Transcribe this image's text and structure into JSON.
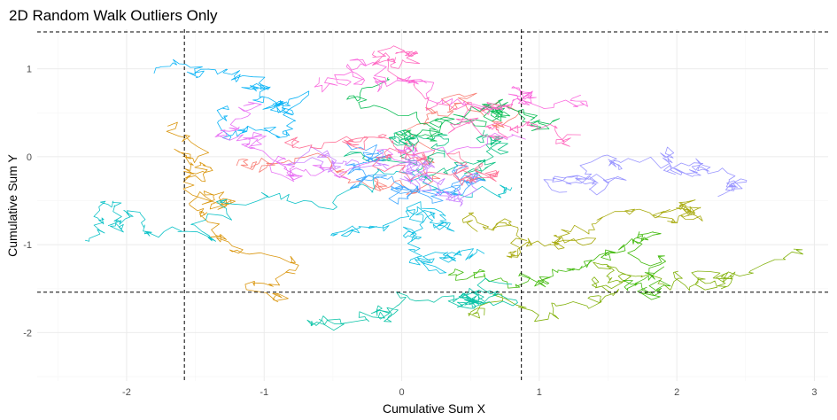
{
  "chart_data": {
    "type": "line",
    "title": "2D Random Walk Outliers Only",
    "xlabel": "Cumulative Sum X",
    "ylabel": "Cumulative Sum Y",
    "xlim": [
      -2.65,
      3.1
    ],
    "ylim": [
      -2.55,
      1.45
    ],
    "x_ticks": [
      -2,
      -1,
      0,
      1,
      2,
      3
    ],
    "y_ticks": [
      -2,
      -1,
      0,
      1
    ],
    "x_tick_labels": [
      "-2",
      "-1",
      "0",
      "1",
      "2",
      "3"
    ],
    "y_tick_labels": [
      "-2",
      "-1",
      "0",
      "1"
    ],
    "grid": true,
    "legend": "none",
    "reference_lines": {
      "vertical_x": [
        -1.58,
        0.87
      ],
      "horizontal_y": [
        1.42,
        -1.54
      ]
    },
    "series": [
      {
        "color": "#F8766D",
        "start": [
          -1.2,
          -0.1
        ],
        "end": [
          0.7,
          0.3
        ]
      },
      {
        "color": "#D89000",
        "start": [
          -1.7,
          0.35
        ],
        "end": [
          -0.9,
          -1.65
        ]
      },
      {
        "color": "#A3A500",
        "start": [
          0.55,
          -0.85
        ],
        "end": [
          1.95,
          -0.6
        ]
      },
      {
        "color": "#7CAE00",
        "start": [
          0.6,
          -1.8
        ],
        "end": [
          2.85,
          -1.05
        ]
      },
      {
        "color": "#39B600",
        "start": [
          0.4,
          -1.35
        ],
        "end": [
          1.75,
          -1.55
        ]
      },
      {
        "color": "#00BB4E",
        "start": [
          -0.1,
          0.9
        ],
        "end": [
          1.1,
          0.4
        ]
      },
      {
        "color": "#00BF7D",
        "start": [
          -0.3,
          0.05
        ],
        "end": [
          0.6,
          0.3
        ]
      },
      {
        "color": "#00C1A3",
        "start": [
          -0.6,
          -1.85
        ],
        "end": [
          0.8,
          -1.45
        ]
      },
      {
        "color": "#00BFC4",
        "start": [
          -2.3,
          -0.95
        ],
        "end": [
          0.8,
          -0.35
        ]
      },
      {
        "color": "#00BAE0",
        "start": [
          -0.5,
          -0.9
        ],
        "end": [
          0.6,
          -1.1
        ]
      },
      {
        "color": "#00B0F6",
        "start": [
          -1.8,
          0.95
        ],
        "end": [
          -1.3,
          0.55
        ]
      },
      {
        "color": "#35A2FF",
        "start": [
          -0.4,
          0.15
        ],
        "end": [
          0.4,
          -0.15
        ]
      },
      {
        "color": "#9590FF",
        "start": [
          1.2,
          -0.4
        ],
        "end": [
          2.3,
          -0.45
        ]
      },
      {
        "color": "#C77CFF",
        "start": [
          -0.5,
          -0.1
        ],
        "end": [
          0.5,
          -0.25
        ]
      },
      {
        "color": "#E76BF3",
        "start": [
          -1.1,
          0.6
        ],
        "end": [
          0.9,
          0.2
        ]
      },
      {
        "color": "#FA62DB",
        "start": [
          -0.6,
          0.9
        ],
        "end": [
          1.3,
          0.7
        ]
      },
      {
        "color": "#FF62BC",
        "start": [
          -0.2,
          1.2
        ],
        "end": [
          1.3,
          0.25
        ]
      },
      {
        "color": "#FF6C91",
        "start": [
          -0.8,
          0.2
        ],
        "end": [
          0.6,
          -0.2
        ]
      }
    ]
  }
}
